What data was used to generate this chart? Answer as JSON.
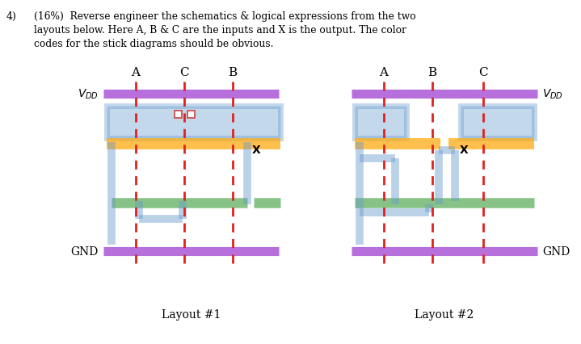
{
  "bg_color": "#ffffff",
  "colors": {
    "purple": "#9932CC",
    "blue": "#6699CC",
    "orange": "#FFA500",
    "green": "#55AA55",
    "red": "#DD2222"
  },
  "layout1_label": "Layout #1",
  "layout2_label": "Layout #2",
  "header_line1": "4)      (16%)  Reverse engineer the schematics & logical expressions from the two",
  "header_line2": "         layouts below. Here A, B & C are the inputs and X is the output. The color",
  "header_line3": "         codes for the stick diagrams should be obvious."
}
